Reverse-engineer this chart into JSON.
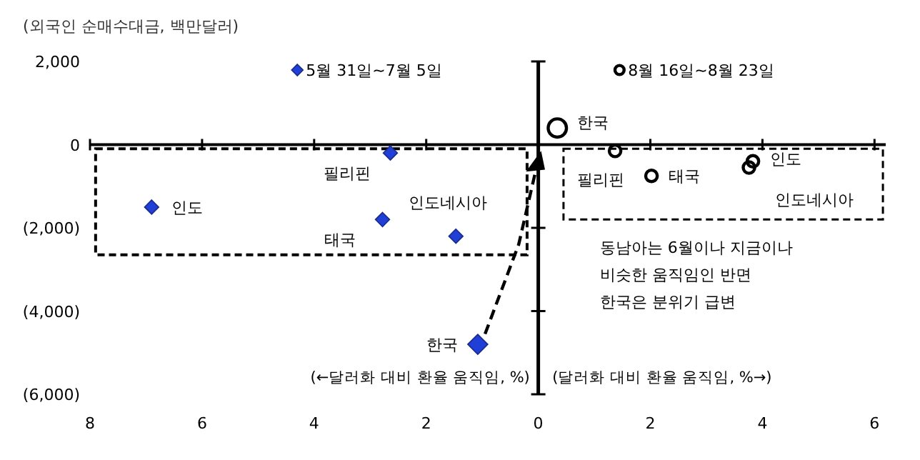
{
  "chart_data": {
    "type": "scatter",
    "ylabel": "(외국인 순매수대금, 백만달러)",
    "xlim": [
      -8,
      6.2
    ],
    "xticks": [
      {
        "value": -8,
        "label": "8"
      },
      {
        "value": -6,
        "label": "6"
      },
      {
        "value": -4,
        "label": "4"
      },
      {
        "value": -2,
        "label": "2"
      },
      0,
      2,
      4,
      6
    ],
    "ylim": [
      -6000,
      2000
    ],
    "yticks": [
      {
        "value": 2000,
        "label": "2,000"
      },
      0,
      {
        "value": -2000,
        "label": "(2,000)"
      },
      {
        "value": -4000,
        "label": "(4,000)"
      },
      {
        "value": -6000,
        "label": "(6,000)"
      }
    ],
    "legend": "top",
    "grid": false,
    "series": [
      {
        "name": "5월 31일~7월 5일",
        "color": "#1f3fd6",
        "marker": "diamond",
        "x": [
          -2.64,
          -6.9,
          -2.78,
          -1.47,
          -1.08
        ],
        "values": [
          -200,
          -1500,
          -1800,
          -2200,
          -4800
        ],
        "sizes": [
          0.5,
          0.5,
          0.5,
          0.5,
          1
        ]
      },
      {
        "name": "8월 16일~8월 23일",
        "color": "#000000",
        "marker": "circle",
        "x": [
          0.34,
          1.37,
          2.02,
          3.83,
          3.76
        ],
        "values": [
          400,
          -150,
          -750,
          -400,
          -550
        ],
        "sizes": [
          1,
          0.4,
          0.4,
          0.4,
          0.4
        ]
      }
    ],
    "annotations": [
      {
        "text": "필리핀",
        "x": -2.64,
        "y": -200
      },
      {
        "text": "인도",
        "x": -6.9,
        "y": -1500
      },
      {
        "text": "태국",
        "x": -2.78,
        "y": -1800
      },
      {
        "text": "인도네시아",
        "x": -1.47,
        "y": -2200
      },
      {
        "text": "한국",
        "x": -1.08,
        "y": -4800
      },
      {
        "text": "한국",
        "x": 0.34,
        "y": 400
      },
      {
        "text": "필리핀",
        "x": 1.37,
        "y": -150
      },
      {
        "text": "태국",
        "x": 2.02,
        "y": -750
      },
      {
        "text": "인도",
        "x": 3.83,
        "y": -400
      },
      {
        "text": "인도네시아",
        "x": 3.76,
        "y": -550
      },
      "동남아는 6월이나 지금이나\n비슷한 움직임인 반면\n한국은 분위기 급변",
      "(←달러화 대비 환율 움직임, %)",
      "(달러화 대비 환율 움직임, %→)"
    ]
  }
}
